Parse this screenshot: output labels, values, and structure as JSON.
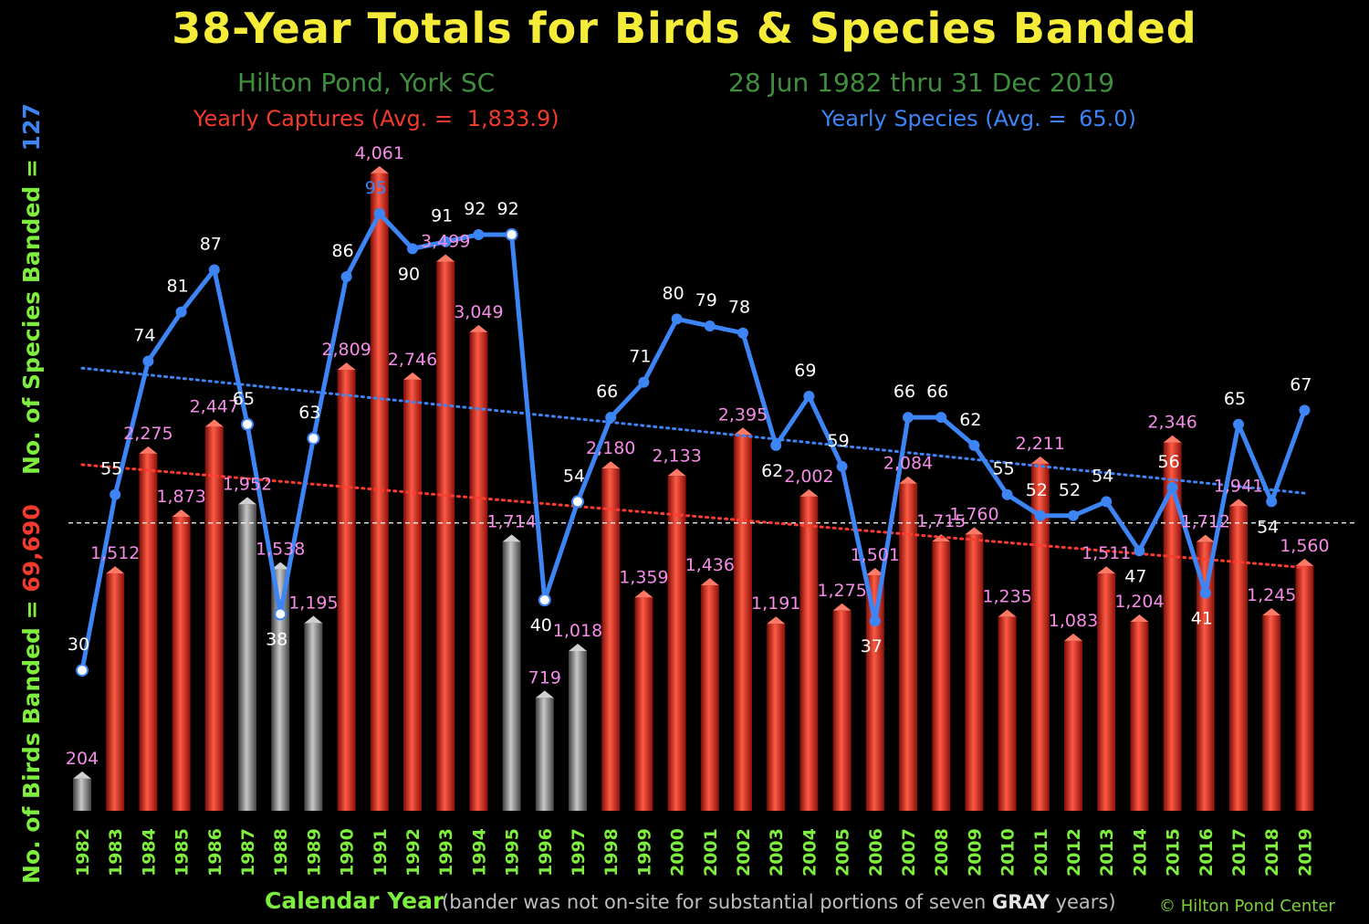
{
  "header": {
    "title": "38-Year Totals for Birds & Species Banded",
    "location": "Hilton Pond, York SC",
    "date_range": "28 Jun 1982 thru 31 Dec 2019",
    "captures_avg_label": "Yearly Captures (Avg. =",
    "captures_avg_value": "1,833.9)",
    "species_avg_label": "Yearly Species  (Avg. =",
    "species_avg_value": "65.0)"
  },
  "axes": {
    "species_total_label": "No. of Species Banded =",
    "species_total_value": "127",
    "birds_total_label": "No. of Birds Banded =",
    "birds_total_value": "69,690",
    "x_label": "Calendar Year",
    "note_prefix": "(bander was not on-site for substantial portions of seven ",
    "note_gray": "GRAY",
    "note_suffix": " years)",
    "credit": "© Hilton Pond Center"
  },
  "colors": {
    "title": "#f5ec3a",
    "bar_red": "#e8261c",
    "bar_gray": "#8a8a8a",
    "species_line": "#3d84f5",
    "capture_label": "#f58ce6",
    "species_label": "#ffffff",
    "year_label": "#7dee3e",
    "trend_red": "#ff3b30",
    "trend_blue": "#3d84f5"
  },
  "chart_data": {
    "type": "bar",
    "title": "38-Year Totals for Birds & Species Banded",
    "xlabel": "Calendar Year",
    "categories": [
      "1982",
      "1983",
      "1984",
      "1985",
      "1986",
      "1987",
      "1988",
      "1989",
      "1990",
      "1991",
      "1992",
      "1993",
      "1994",
      "1995",
      "1996",
      "1997",
      "1998",
      "1999",
      "2000",
      "2001",
      "2002",
      "2003",
      "2004",
      "2005",
      "2006",
      "2007",
      "2008",
      "2009",
      "2010",
      "2011",
      "2012",
      "2013",
      "2014",
      "2015",
      "2016",
      "2017",
      "2018",
      "2019"
    ],
    "gray_years": [
      "1982",
      "1987",
      "1988",
      "1989",
      "1995",
      "1996",
      "1997"
    ],
    "series": [
      {
        "name": "Yearly Captures",
        "type": "bar",
        "values": [
          204,
          1512,
          2275,
          1873,
          2447,
          1952,
          1538,
          1195,
          2809,
          4061,
          2746,
          3499,
          3049,
          1714,
          719,
          1018,
          2180,
          1359,
          2133,
          1436,
          2395,
          1191,
          2002,
          1275,
          1501,
          2084,
          1715,
          1760,
          1235,
          2211,
          1083,
          1511,
          1204,
          2346,
          1712,
          1941,
          1245,
          1560
        ],
        "labels": [
          "204",
          "1,512",
          "2,275",
          "1,873",
          "2,447",
          "1,952",
          "1,538",
          "1,195",
          "2,809",
          "4,061",
          "2,746",
          "3,499",
          "3,049",
          "1,714",
          "719",
          "1,018",
          "2,180",
          "1,359",
          "2,133",
          "1,436",
          "2,395",
          "1,191",
          "2,002",
          "1,275",
          "1,501",
          "2,084",
          "1,715",
          "1,760",
          "1,235",
          "2,211",
          "1,083",
          "1,511",
          "1,204",
          "2,346",
          "1,712",
          "1,941",
          "1,245",
          "1,560"
        ],
        "average": 1833.9,
        "trend": [
          2205,
          1549
        ]
      },
      {
        "name": "Yearly Species",
        "type": "line",
        "values": [
          30,
          55,
          74,
          81,
          87,
          65,
          38,
          63,
          86,
          95,
          90,
          91,
          92,
          92,
          40,
          54,
          66,
          71,
          80,
          79,
          78,
          62,
          69,
          59,
          37,
          66,
          66,
          62,
          55,
          52,
          52,
          54,
          47,
          56,
          41,
          65,
          54,
          67
        ],
        "average": 65.0,
        "trend": [
          73.0,
          55.2
        ]
      }
    ],
    "ylim_birds": [
      0,
      4700
    ],
    "ylim_species": [
      10,
      115
    ],
    "grid": false
  }
}
